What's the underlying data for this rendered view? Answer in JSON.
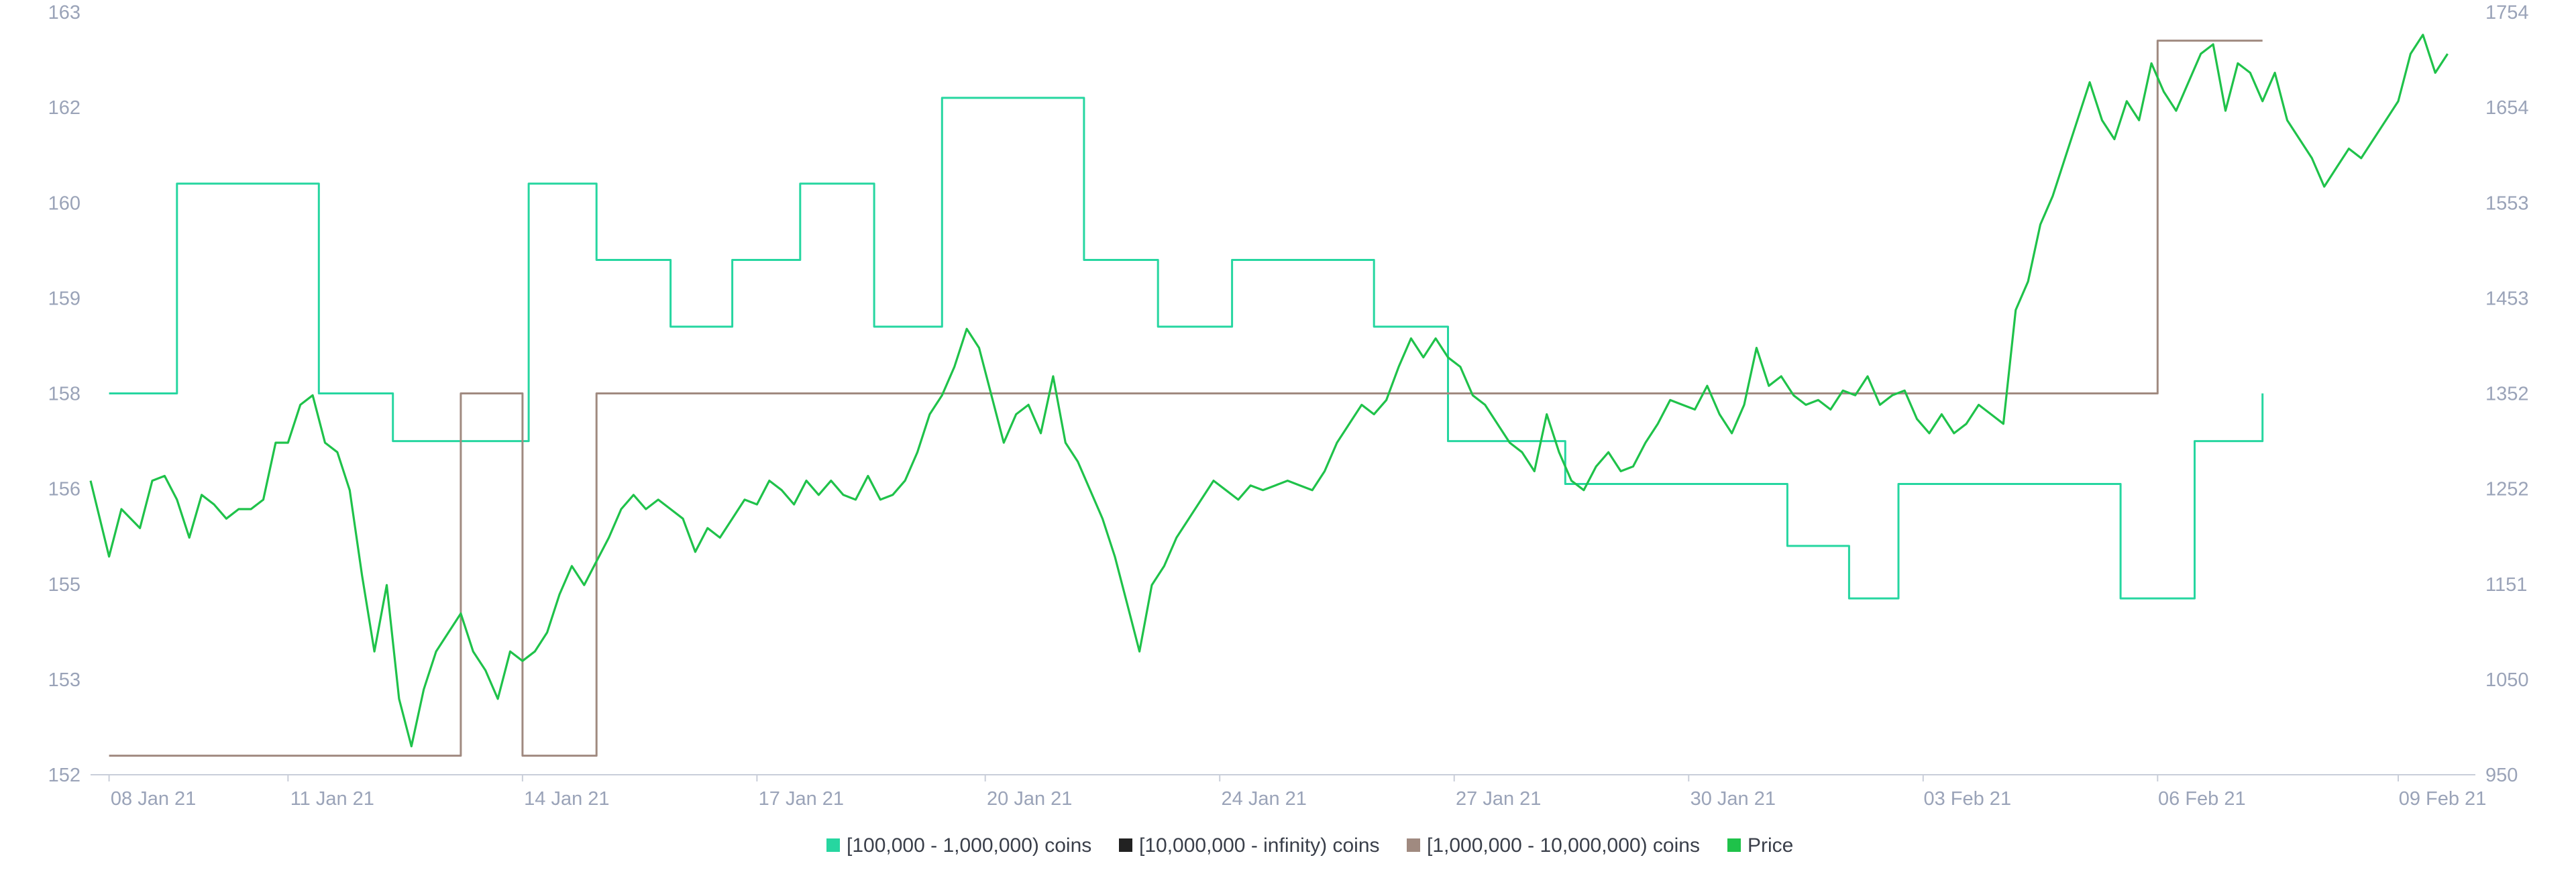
{
  "chart_data": {
    "type": "line",
    "grid": false,
    "legend_position": "bottom-center",
    "colors": {
      "coins_100k_1m": "#26d6a0",
      "coins_10m_inf": "#222222",
      "coins_1m_10m": "#a08a80",
      "price": "#1fc24a",
      "axis_text": "#9aa3b8"
    },
    "x_range_days": [
      "07 Jan 21",
      "09 Feb 21"
    ],
    "x_ticks": [
      {
        "label": "08 Jan 21",
        "day": 0.3
      },
      {
        "label": "11 Jan 21",
        "day": 3.2
      },
      {
        "label": "14 Jan 21",
        "day": 7.0
      },
      {
        "label": "17 Jan 21",
        "day": 10.8
      },
      {
        "label": "20 Jan 21",
        "day": 14.5
      },
      {
        "label": "24 Jan 21",
        "day": 18.3
      },
      {
        "label": "27 Jan 21",
        "day": 22.1
      },
      {
        "label": "30 Jan 21",
        "day": 25.9
      },
      {
        "label": "03 Feb 21",
        "day": 29.7
      },
      {
        "label": "06 Feb 21",
        "day": 33.5
      },
      {
        "label": "09 Feb 21",
        "day": 37.4
      }
    ],
    "y_left_ticks": [
      "163",
      "162",
      "160",
      "159",
      "158",
      "156",
      "155",
      "153",
      "152"
    ],
    "y_right_ticks": [
      "1754",
      "1654",
      "1553",
      "1453",
      "1352",
      "1252",
      "1151",
      "1050",
      "950"
    ],
    "y_left_range": [
      152,
      163
    ],
    "y_right_range": [
      950,
      1754
    ],
    "legend": [
      {
        "key": "coins_100k_1m",
        "label": "[100,000  - 1,000,000) coins"
      },
      {
        "key": "coins_10m_inf",
        "label": "[10,000,000 - infinity) coins"
      },
      {
        "key": "coins_1m_10m",
        "label": "[1,000,000 - 10,000,000) coins"
      },
      {
        "key": "price",
        "label": "Price"
      }
    ],
    "series": [
      {
        "key": "coins_100k_1m",
        "axis": "left",
        "step": true,
        "points": [
          [
            0.3,
            158
          ],
          [
            1.4,
            160.4
          ],
          [
            3.7,
            158
          ],
          [
            4.9,
            157
          ],
          [
            7.1,
            160.4
          ],
          [
            8.2,
            159.4
          ],
          [
            9.4,
            158.7
          ],
          [
            10.4,
            159.4
          ],
          [
            11.5,
            160.4
          ],
          [
            12.7,
            158.7
          ],
          [
            13.8,
            162.1
          ],
          [
            16.1,
            159.4
          ],
          [
            17.3,
            158.7
          ],
          [
            18.5,
            159.4
          ],
          [
            20.8,
            158.7
          ],
          [
            22.0,
            157
          ],
          [
            23.9,
            156.1
          ],
          [
            27.5,
            155.4
          ],
          [
            28.5,
            154.7
          ],
          [
            29.3,
            156.1
          ],
          [
            32.9,
            154.7
          ],
          [
            34.1,
            157
          ],
          [
            35.2,
            158
          ],
          [
            35.2,
            158
          ]
        ]
      },
      {
        "key": "coins_1m_10m",
        "axis": "left",
        "step": true,
        "points": [
          [
            0.3,
            152.2
          ],
          [
            6.0,
            158
          ],
          [
            7.0,
            152.2
          ],
          [
            8.2,
            158
          ],
          [
            33.5,
            162.7
          ],
          [
            35.2,
            162.7
          ]
        ]
      },
      {
        "key": "price",
        "axis": "right",
        "step": false,
        "points": [
          [
            0.0,
            1260
          ],
          [
            0.3,
            1180
          ],
          [
            0.5,
            1230
          ],
          [
            0.8,
            1210
          ],
          [
            1.0,
            1260
          ],
          [
            1.2,
            1265
          ],
          [
            1.4,
            1240
          ],
          [
            1.6,
            1200
          ],
          [
            1.8,
            1245
          ],
          [
            2.0,
            1235
          ],
          [
            2.2,
            1220
          ],
          [
            2.4,
            1230
          ],
          [
            2.6,
            1230
          ],
          [
            2.8,
            1240
          ],
          [
            3.0,
            1300
          ],
          [
            3.2,
            1300
          ],
          [
            3.4,
            1340
          ],
          [
            3.6,
            1350
          ],
          [
            3.8,
            1300
          ],
          [
            4.0,
            1290
          ],
          [
            4.2,
            1250
          ],
          [
            4.4,
            1160
          ],
          [
            4.6,
            1080
          ],
          [
            4.8,
            1150
          ],
          [
            5.0,
            1030
          ],
          [
            5.2,
            980
          ],
          [
            5.4,
            1040
          ],
          [
            5.6,
            1080
          ],
          [
            5.8,
            1100
          ],
          [
            6.0,
            1120
          ],
          [
            6.2,
            1080
          ],
          [
            6.4,
            1060
          ],
          [
            6.6,
            1030
          ],
          [
            6.8,
            1080
          ],
          [
            7.0,
            1070
          ],
          [
            7.2,
            1080
          ],
          [
            7.4,
            1100
          ],
          [
            7.6,
            1140
          ],
          [
            7.8,
            1170
          ],
          [
            8.0,
            1150
          ],
          [
            8.2,
            1175
          ],
          [
            8.4,
            1200
          ],
          [
            8.6,
            1230
          ],
          [
            8.8,
            1245
          ],
          [
            9.0,
            1230
          ],
          [
            9.2,
            1240
          ],
          [
            9.4,
            1230
          ],
          [
            9.6,
            1220
          ],
          [
            9.8,
            1185
          ],
          [
            10.0,
            1210
          ],
          [
            10.2,
            1200
          ],
          [
            10.4,
            1220
          ],
          [
            10.6,
            1240
          ],
          [
            10.8,
            1235
          ],
          [
            11.0,
            1260
          ],
          [
            11.2,
            1250
          ],
          [
            11.4,
            1235
          ],
          [
            11.6,
            1260
          ],
          [
            11.8,
            1245
          ],
          [
            12.0,
            1260
          ],
          [
            12.2,
            1245
          ],
          [
            12.4,
            1240
          ],
          [
            12.6,
            1265
          ],
          [
            12.8,
            1240
          ],
          [
            13.0,
            1245
          ],
          [
            13.2,
            1260
          ],
          [
            13.4,
            1290
          ],
          [
            13.6,
            1330
          ],
          [
            13.8,
            1350
          ],
          [
            14.0,
            1380
          ],
          [
            14.2,
            1420
          ],
          [
            14.4,
            1400
          ],
          [
            14.6,
            1350
          ],
          [
            14.8,
            1300
          ],
          [
            15.0,
            1330
          ],
          [
            15.2,
            1340
          ],
          [
            15.4,
            1310
          ],
          [
            15.6,
            1370
          ],
          [
            15.8,
            1300
          ],
          [
            16.0,
            1280
          ],
          [
            16.2,
            1250
          ],
          [
            16.4,
            1220
          ],
          [
            16.6,
            1180
          ],
          [
            16.8,
            1130
          ],
          [
            17.0,
            1080
          ],
          [
            17.2,
            1150
          ],
          [
            17.4,
            1170
          ],
          [
            17.6,
            1200
          ],
          [
            17.8,
            1220
          ],
          [
            18.0,
            1240
          ],
          [
            18.2,
            1260
          ],
          [
            18.4,
            1250
          ],
          [
            18.6,
            1240
          ],
          [
            18.8,
            1255
          ],
          [
            19.0,
            1250
          ],
          [
            19.2,
            1255
          ],
          [
            19.4,
            1260
          ],
          [
            19.6,
            1255
          ],
          [
            19.8,
            1250
          ],
          [
            20.0,
            1270
          ],
          [
            20.2,
            1300
          ],
          [
            20.4,
            1320
          ],
          [
            20.6,
            1340
          ],
          [
            20.8,
            1330
          ],
          [
            21.0,
            1345
          ],
          [
            21.2,
            1380
          ],
          [
            21.4,
            1410
          ],
          [
            21.6,
            1390
          ],
          [
            21.8,
            1410
          ],
          [
            22.0,
            1390
          ],
          [
            22.2,
            1380
          ],
          [
            22.4,
            1350
          ],
          [
            22.6,
            1340
          ],
          [
            22.8,
            1320
          ],
          [
            23.0,
            1300
          ],
          [
            23.2,
            1290
          ],
          [
            23.4,
            1270
          ],
          [
            23.6,
            1330
          ],
          [
            23.8,
            1290
          ],
          [
            24.0,
            1260
          ],
          [
            24.2,
            1250
          ],
          [
            24.4,
            1275
          ],
          [
            24.6,
            1290
          ],
          [
            24.8,
            1270
          ],
          [
            25.0,
            1275
          ],
          [
            25.2,
            1300
          ],
          [
            25.4,
            1320
          ],
          [
            25.6,
            1345
          ],
          [
            25.8,
            1340
          ],
          [
            26.0,
            1335
          ],
          [
            26.2,
            1360
          ],
          [
            26.4,
            1330
          ],
          [
            26.6,
            1310
          ],
          [
            26.8,
            1340
          ],
          [
            27.0,
            1400
          ],
          [
            27.2,
            1360
          ],
          [
            27.4,
            1370
          ],
          [
            27.6,
            1350
          ],
          [
            27.8,
            1340
          ],
          [
            28.0,
            1345
          ],
          [
            28.2,
            1335
          ],
          [
            28.4,
            1355
          ],
          [
            28.6,
            1350
          ],
          [
            28.8,
            1370
          ],
          [
            29.0,
            1340
          ],
          [
            29.2,
            1350
          ],
          [
            29.4,
            1355
          ],
          [
            29.6,
            1325
          ],
          [
            29.8,
            1310
          ],
          [
            30.0,
            1330
          ],
          [
            30.2,
            1310
          ],
          [
            30.4,
            1320
          ],
          [
            30.6,
            1340
          ],
          [
            30.8,
            1330
          ],
          [
            31.0,
            1320
          ],
          [
            31.2,
            1440
          ],
          [
            31.4,
            1470
          ],
          [
            31.6,
            1530
          ],
          [
            31.8,
            1560
          ],
          [
            32.0,
            1600
          ],
          [
            32.2,
            1640
          ],
          [
            32.4,
            1680
          ],
          [
            32.6,
            1640
          ],
          [
            32.8,
            1620
          ],
          [
            33.0,
            1660
          ],
          [
            33.2,
            1640
          ],
          [
            33.4,
            1700
          ],
          [
            33.6,
            1670
          ],
          [
            33.8,
            1650
          ],
          [
            34.0,
            1680
          ],
          [
            34.2,
            1710
          ],
          [
            34.4,
            1720
          ],
          [
            34.6,
            1650
          ],
          [
            34.8,
            1700
          ],
          [
            35.0,
            1690
          ],
          [
            35.2,
            1660
          ],
          [
            35.4,
            1690
          ],
          [
            35.6,
            1640
          ],
          [
            35.8,
            1620
          ],
          [
            36.0,
            1600
          ],
          [
            36.2,
            1570
          ],
          [
            36.4,
            1590
          ],
          [
            36.6,
            1610
          ],
          [
            36.8,
            1600
          ],
          [
            37.0,
            1620
          ],
          [
            37.2,
            1640
          ],
          [
            37.4,
            1660
          ],
          [
            37.6,
            1710
          ],
          [
            37.8,
            1730
          ],
          [
            38.0,
            1690
          ],
          [
            38.2,
            1710
          ]
        ]
      }
    ]
  }
}
